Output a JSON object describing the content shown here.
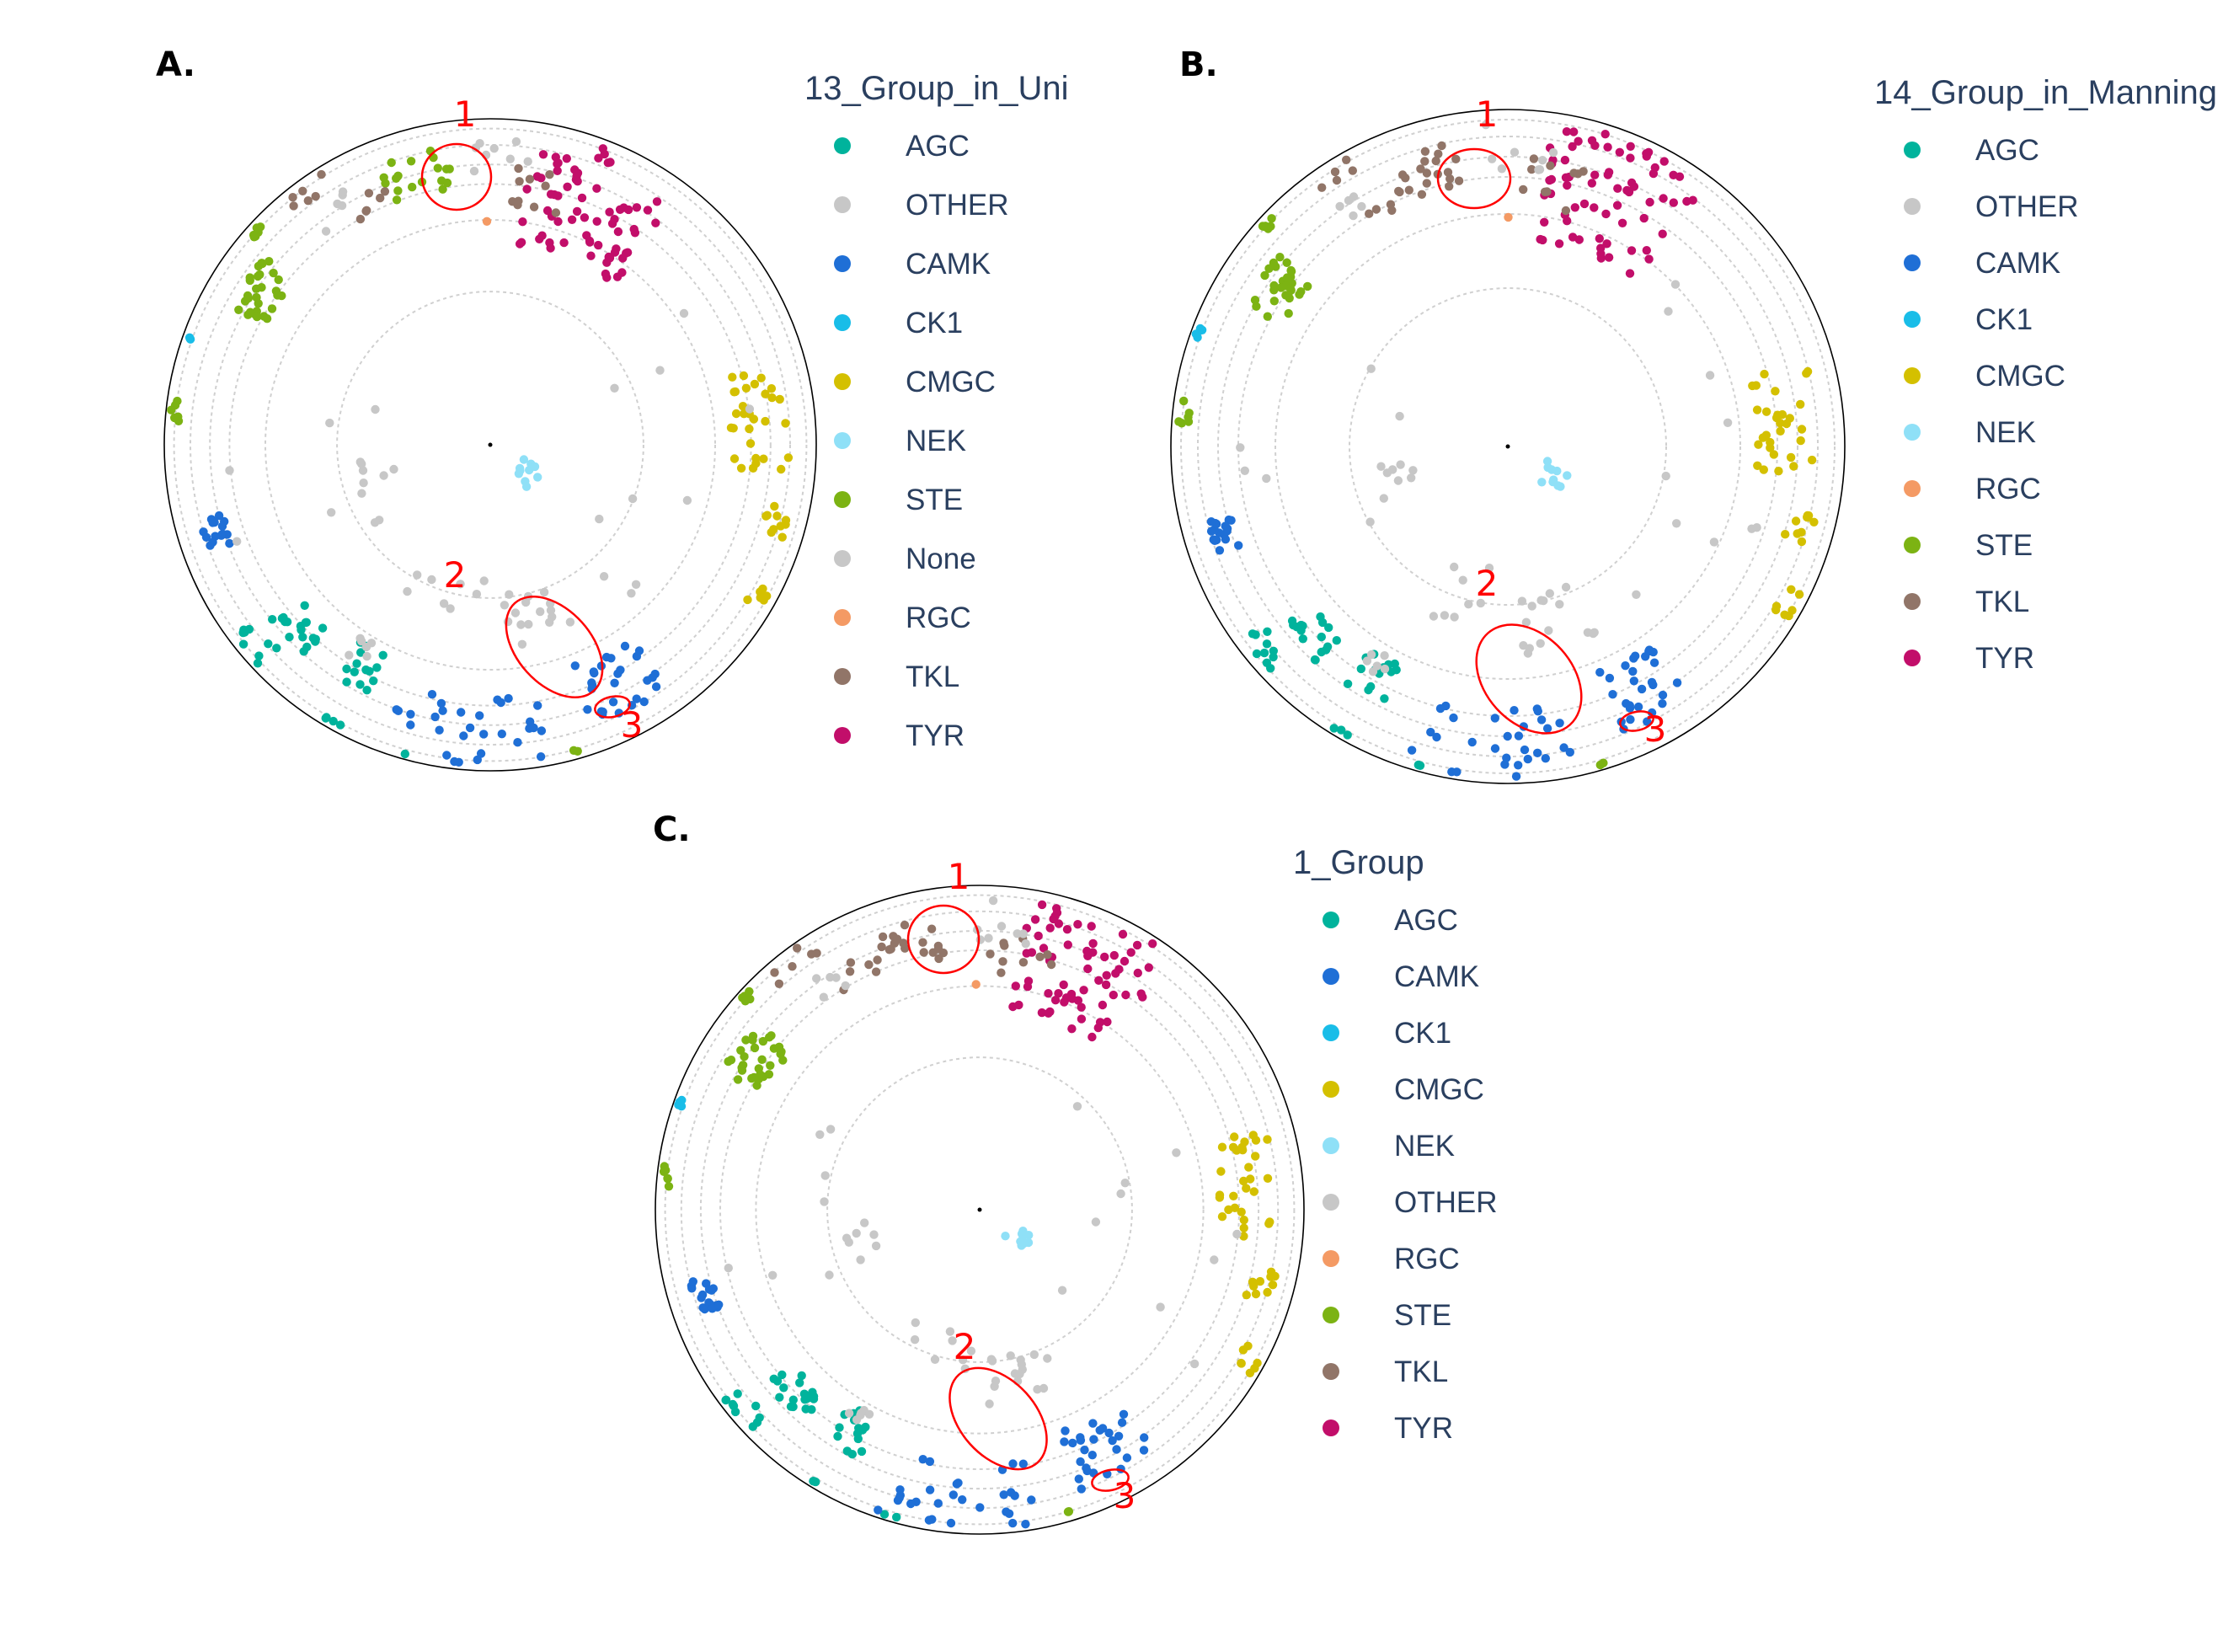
{
  "chart_data": [
    {
      "type": "scatter",
      "panel_label": "A.",
      "legend_title": "13_Group_in_Uni",
      "series": [
        {
          "name": "AGC",
          "color": "#00b39c"
        },
        {
          "name": "OTHER",
          "color": "#c7c7c7"
        },
        {
          "name": "CAMK",
          "color": "#1f6fd6"
        },
        {
          "name": "CK1",
          "color": "#19bde8"
        },
        {
          "name": "CMGC",
          "color": "#d4c000"
        },
        {
          "name": "NEK",
          "color": "#8fe0f7"
        },
        {
          "name": "STE",
          "color": "#7cb313"
        },
        {
          "name": "None",
          "color": "#c7c7c7"
        },
        {
          "name": "RGC",
          "color": "#f49a64"
        },
        {
          "name": "TKL",
          "color": "#917568"
        },
        {
          "name": "TYR",
          "color": "#c20e6a"
        }
      ],
      "annotations": [
        "1",
        "2",
        "3"
      ],
      "grid": true,
      "legend_position": "right"
    },
    {
      "type": "scatter",
      "panel_label": "B.",
      "legend_title": "14_Group_in_Manning",
      "series": [
        {
          "name": "AGC",
          "color": "#00b39c"
        },
        {
          "name": "OTHER",
          "color": "#c7c7c7"
        },
        {
          "name": "CAMK",
          "color": "#1f6fd6"
        },
        {
          "name": "CK1",
          "color": "#19bde8"
        },
        {
          "name": "CMGC",
          "color": "#d4c000"
        },
        {
          "name": "NEK",
          "color": "#8fe0f7"
        },
        {
          "name": "RGC",
          "color": "#f49a64"
        },
        {
          "name": "STE",
          "color": "#7cb313"
        },
        {
          "name": "TKL",
          "color": "#917568"
        },
        {
          "name": "TYR",
          "color": "#c20e6a"
        }
      ],
      "annotations": [
        "1",
        "2",
        "3"
      ],
      "grid": true,
      "legend_position": "right"
    },
    {
      "type": "scatter",
      "panel_label": "C.",
      "legend_title": "1_Group",
      "series": [
        {
          "name": "AGC",
          "color": "#00b39c"
        },
        {
          "name": "CAMK",
          "color": "#1f6fd6"
        },
        {
          "name": "CK1",
          "color": "#19bde8"
        },
        {
          "name": "CMGC",
          "color": "#d4c000"
        },
        {
          "name": "NEK",
          "color": "#8fe0f7"
        },
        {
          "name": "OTHER",
          "color": "#c7c7c7"
        },
        {
          "name": "RGC",
          "color": "#f49a64"
        },
        {
          "name": "STE",
          "color": "#7cb313"
        },
        {
          "name": "TKL",
          "color": "#917568"
        },
        {
          "name": "TYR",
          "color": "#c20e6a"
        }
      ],
      "annotations": [
        "1",
        "2",
        "3"
      ],
      "grid": true,
      "legend_position": "right"
    }
  ]
}
